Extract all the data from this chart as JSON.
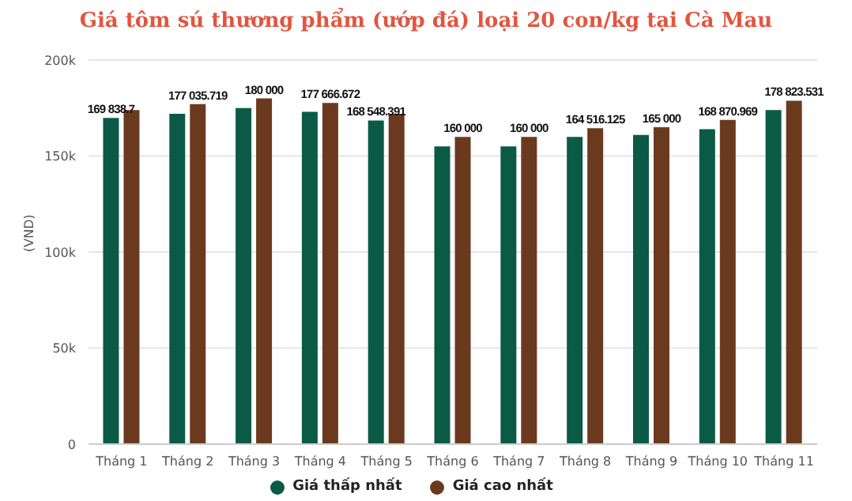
{
  "chart_data": {
    "type": "bar",
    "title": "Giá tôm sú thương phẩm (ướp đá) loại 20 con/kg tại Cà Mau",
    "ylabel": "(VND)",
    "categories": [
      "Tháng 1",
      "Tháng 2",
      "Tháng 3",
      "Tháng 4",
      "Tháng 5",
      "Tháng 6",
      "Tháng 7",
      "Tháng 8",
      "Tháng 9",
      "Tháng 10",
      "Tháng 11"
    ],
    "series": [
      {
        "name": "Giá thấp nhất",
        "color": "#0b5a45",
        "values": [
          169838.7,
          172000,
          175000,
          173000,
          168548.391,
          155000,
          155000,
          160000,
          161000,
          164000,
          174000
        ],
        "value_labels": [
          "169 838.7",
          null,
          null,
          null,
          "168 548.391",
          null,
          null,
          null,
          null,
          null,
          null
        ]
      },
      {
        "name": "Giá cao nhất",
        "color": "#6b3a1e",
        "values": [
          174000,
          177035.719,
          180000,
          177666.672,
          172000,
          160000,
          160000,
          164516.125,
          165000,
          168870.969,
          178823.531
        ],
        "value_labels": [
          null,
          "177 035.719",
          "180 000",
          "177 666.672",
          null,
          "160 000",
          "160 000",
          "164 516.125",
          "165 000",
          "168 870.969",
          "178 823.531"
        ]
      }
    ],
    "ylim": [
      0,
      200000
    ],
    "yticks": [
      0,
      {
        "value": 50000,
        "label": "50k"
      },
      {
        "value": 100000,
        "label": "100k"
      },
      {
        "value": 150000,
        "label": "150k"
      },
      {
        "value": 200000,
        "label": "200k"
      }
    ],
    "grid": "y",
    "legend": "bottom"
  }
}
